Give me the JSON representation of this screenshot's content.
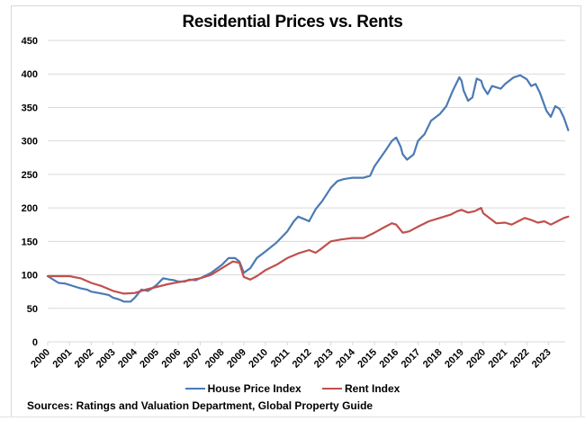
{
  "chart_data": {
    "type": "line",
    "title": "Residential Prices vs. Rents",
    "xlabel": "",
    "ylabel": "",
    "ylim": [
      0,
      450
    ],
    "xlim": [
      2000,
      2024
    ],
    "y_ticks": [
      0,
      50,
      100,
      150,
      200,
      250,
      300,
      350,
      400,
      450
    ],
    "x_tick_labels": [
      "2000",
      "2001",
      "2002",
      "2003",
      "2004",
      "2005",
      "2006",
      "2007",
      "2008",
      "2009",
      "2010",
      "2011",
      "2012",
      "2013",
      "2014",
      "2015",
      "2016",
      "2017",
      "2018",
      "2019",
      "2020",
      "2021",
      "2022",
      "2023"
    ],
    "grid": true,
    "legend_position": "bottom",
    "series": [
      {
        "name": "House Price Index",
        "color": "#4a7ab5",
        "points": [
          [
            2000.0,
            98
          ],
          [
            2000.3,
            92
          ],
          [
            2000.5,
            88
          ],
          [
            2000.8,
            87
          ],
          [
            2001.0,
            85
          ],
          [
            2001.3,
            82
          ],
          [
            2001.5,
            80
          ],
          [
            2001.8,
            78
          ],
          [
            2002.0,
            75
          ],
          [
            2002.5,
            72
          ],
          [
            2002.8,
            70
          ],
          [
            2003.0,
            66
          ],
          [
            2003.3,
            63
          ],
          [
            2003.5,
            60
          ],
          [
            2003.8,
            60
          ],
          [
            2004.0,
            66
          ],
          [
            2004.3,
            78
          ],
          [
            2004.6,
            76
          ],
          [
            2004.8,
            80
          ],
          [
            2005.0,
            85
          ],
          [
            2005.3,
            95
          ],
          [
            2005.6,
            93
          ],
          [
            2005.8,
            92
          ],
          [
            2006.0,
            90
          ],
          [
            2006.3,
            90
          ],
          [
            2006.5,
            93
          ],
          [
            2006.8,
            92
          ],
          [
            2007.0,
            95
          ],
          [
            2007.5,
            103
          ],
          [
            2008.0,
            115
          ],
          [
            2008.3,
            125
          ],
          [
            2008.6,
            125
          ],
          [
            2008.8,
            120
          ],
          [
            2008.9,
            112
          ],
          [
            2009.0,
            103
          ],
          [
            2009.3,
            110
          ],
          [
            2009.6,
            125
          ],
          [
            2010.0,
            135
          ],
          [
            2010.5,
            148
          ],
          [
            2011.0,
            165
          ],
          [
            2011.3,
            180
          ],
          [
            2011.5,
            187
          ],
          [
            2011.8,
            183
          ],
          [
            2012.0,
            180
          ],
          [
            2012.3,
            198
          ],
          [
            2012.6,
            210
          ],
          [
            2013.0,
            230
          ],
          [
            2013.3,
            240
          ],
          [
            2013.6,
            243
          ],
          [
            2014.0,
            245
          ],
          [
            2014.5,
            245
          ],
          [
            2014.8,
            248
          ],
          [
            2015.0,
            262
          ],
          [
            2015.5,
            285
          ],
          [
            2015.8,
            300
          ],
          [
            2016.0,
            305
          ],
          [
            2016.2,
            292
          ],
          [
            2016.3,
            280
          ],
          [
            2016.5,
            272
          ],
          [
            2016.8,
            280
          ],
          [
            2017.0,
            300
          ],
          [
            2017.3,
            310
          ],
          [
            2017.6,
            330
          ],
          [
            2018.0,
            340
          ],
          [
            2018.3,
            352
          ],
          [
            2018.6,
            375
          ],
          [
            2018.9,
            395
          ],
          [
            2019.0,
            390
          ],
          [
            2019.1,
            375
          ],
          [
            2019.3,
            360
          ],
          [
            2019.5,
            365
          ],
          [
            2019.7,
            393
          ],
          [
            2019.9,
            390
          ],
          [
            2020.0,
            380
          ],
          [
            2020.2,
            370
          ],
          [
            2020.4,
            382
          ],
          [
            2020.6,
            380
          ],
          [
            2020.8,
            378
          ],
          [
            2021.0,
            385
          ],
          [
            2021.4,
            395
          ],
          [
            2021.7,
            398
          ],
          [
            2022.0,
            392
          ],
          [
            2022.2,
            382
          ],
          [
            2022.4,
            385
          ],
          [
            2022.6,
            372
          ],
          [
            2022.9,
            345
          ],
          [
            2023.1,
            336
          ],
          [
            2023.3,
            352
          ],
          [
            2023.5,
            348
          ],
          [
            2023.7,
            335
          ],
          [
            2023.9,
            316
          ]
        ]
      },
      {
        "name": "Rent Index",
        "color": "#c0504d",
        "points": [
          [
            2000.0,
            98
          ],
          [
            2000.5,
            98
          ],
          [
            2001.0,
            98
          ],
          [
            2001.5,
            95
          ],
          [
            2002.0,
            88
          ],
          [
            2002.5,
            83
          ],
          [
            2003.0,
            76
          ],
          [
            2003.5,
            72
          ],
          [
            2004.0,
            73
          ],
          [
            2004.5,
            78
          ],
          [
            2005.0,
            82
          ],
          [
            2005.5,
            86
          ],
          [
            2006.0,
            89
          ],
          [
            2006.5,
            92
          ],
          [
            2007.0,
            95
          ],
          [
            2007.5,
            100
          ],
          [
            2008.0,
            110
          ],
          [
            2008.5,
            120
          ],
          [
            2008.8,
            118
          ],
          [
            2009.0,
            97
          ],
          [
            2009.3,
            93
          ],
          [
            2009.6,
            98
          ],
          [
            2010.0,
            107
          ],
          [
            2010.5,
            115
          ],
          [
            2011.0,
            125
          ],
          [
            2011.5,
            132
          ],
          [
            2012.0,
            137
          ],
          [
            2012.3,
            133
          ],
          [
            2012.6,
            140
          ],
          [
            2013.0,
            150
          ],
          [
            2013.5,
            153
          ],
          [
            2014.0,
            155
          ],
          [
            2014.5,
            155
          ],
          [
            2015.0,
            163
          ],
          [
            2015.5,
            172
          ],
          [
            2015.8,
            177
          ],
          [
            2016.0,
            175
          ],
          [
            2016.3,
            163
          ],
          [
            2016.6,
            165
          ],
          [
            2017.0,
            172
          ],
          [
            2017.5,
            180
          ],
          [
            2018.0,
            185
          ],
          [
            2018.5,
            190
          ],
          [
            2018.8,
            195
          ],
          [
            2019.0,
            197
          ],
          [
            2019.3,
            193
          ],
          [
            2019.6,
            195
          ],
          [
            2019.9,
            200
          ],
          [
            2020.0,
            192
          ],
          [
            2020.4,
            182
          ],
          [
            2020.6,
            177
          ],
          [
            2021.0,
            178
          ],
          [
            2021.3,
            175
          ],
          [
            2021.6,
            180
          ],
          [
            2021.9,
            185
          ],
          [
            2022.2,
            182
          ],
          [
            2022.5,
            178
          ],
          [
            2022.8,
            180
          ],
          [
            2023.1,
            175
          ],
          [
            2023.4,
            180
          ],
          [
            2023.7,
            185
          ],
          [
            2023.9,
            187
          ]
        ]
      }
    ]
  },
  "legend": {
    "items": [
      {
        "label": "House Price Index",
        "color": "#4a7ab5"
      },
      {
        "label": "Rent Index",
        "color": "#c0504d"
      }
    ]
  },
  "source_note": "Sources: Ratings and Valuation Department, Global Property Guide"
}
